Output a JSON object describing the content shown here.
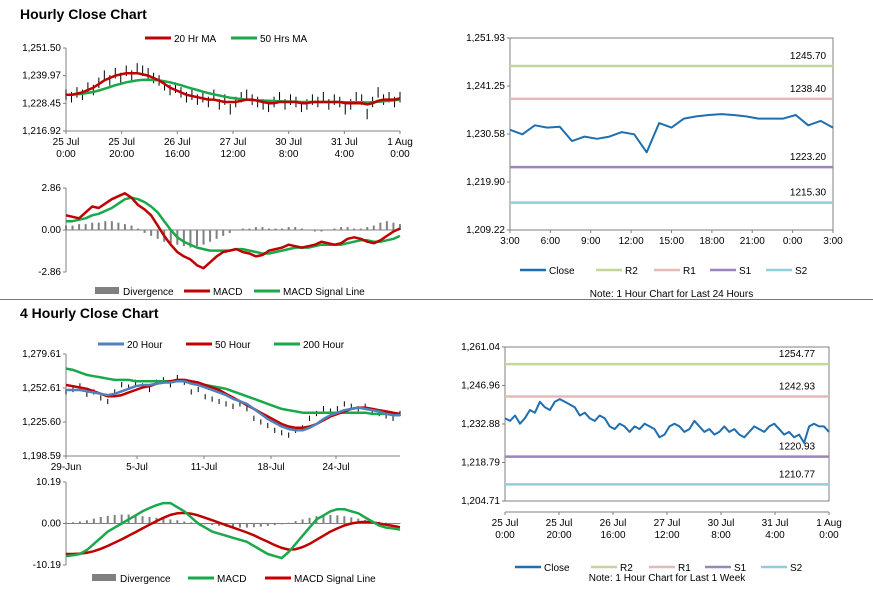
{
  "titles": {
    "hourly": "Hourly Close Chart",
    "four_hourly": "4 Hourly Close Chart"
  },
  "colors": {
    "price": "#000000",
    "ma_red": "#c00000",
    "ma_green": "#1aa84b",
    "ma_blue": "#4f81bd",
    "close": "#1f6fb0",
    "r2": "#c3d69b",
    "r1": "#e6b8b7",
    "s1": "#9a85bd",
    "s2": "#92cddc",
    "divergence": "#808080",
    "axis": "#808080"
  },
  "chart_data": [
    {
      "id": "hourly_price",
      "type": "line",
      "title": "",
      "legend": [
        "20 Hr MA",
        "50 Hrs MA"
      ],
      "yticks": [
        "1,251.50",
        "1,239.97",
        "1,228.45",
        "1,216.92"
      ],
      "ylim": [
        1216.92,
        1251.5
      ],
      "xticks": [
        [
          "25 Jul",
          "0:00"
        ],
        [
          "25 Jul",
          "20:00"
        ],
        [
          "26 Jul",
          "16:00"
        ],
        [
          "27 Jul",
          "12:00"
        ],
        [
          "30 Jul",
          "8:00"
        ],
        [
          "31 Jul",
          "4:00"
        ],
        [
          "1 Aug",
          "0:00"
        ]
      ],
      "series": [
        {
          "name": "Close",
          "values": [
            1232,
            1231,
            1233,
            1232,
            1235,
            1234,
            1237,
            1240,
            1238,
            1241,
            1239,
            1242,
            1240,
            1243,
            1242,
            1241,
            1239,
            1238,
            1236,
            1234,
            1235,
            1233,
            1231,
            1232,
            1230,
            1231,
            1229,
            1232,
            1228,
            1230,
            1226,
            1229,
            1231,
            1232,
            1230,
            1229,
            1228,
            1227,
            1229,
            1231,
            1228,
            1230,
            1229,
            1227,
            1228,
            1230,
            1229,
            1231,
            1228,
            1230,
            1229,
            1226,
            1228,
            1231,
            1230,
            1224,
            1229,
            1233,
            1230,
            1231,
            1229,
            1231
          ]
        },
        {
          "name": "20 Hr MA",
          "values": [
            1232,
            1232,
            1232.5,
            1233,
            1234,
            1235,
            1236.5,
            1238,
            1239,
            1240,
            1240.5,
            1241,
            1241,
            1241,
            1240.5,
            1240,
            1239,
            1238,
            1236.5,
            1235,
            1234,
            1233,
            1232,
            1231.5,
            1231,
            1230.5,
            1230,
            1230,
            1229.5,
            1229,
            1229,
            1229,
            1229.5,
            1230,
            1230,
            1229.5,
            1229,
            1228.5,
            1228.5,
            1229,
            1229,
            1229,
            1229,
            1228.5,
            1228.5,
            1229,
            1229,
            1229,
            1229,
            1229,
            1229,
            1228.5,
            1228.5,
            1228.5,
            1228.5,
            1228,
            1228.5,
            1229.5,
            1230,
            1230,
            1230,
            1230.5
          ]
        },
        {
          "name": "50 Hrs MA",
          "values": [
            1232,
            1232,
            1232.2,
            1232.4,
            1232.8,
            1233.2,
            1233.8,
            1234.5,
            1235.2,
            1236,
            1236.6,
            1237.2,
            1237.6,
            1238,
            1238.2,
            1238.3,
            1238.2,
            1238,
            1237.6,
            1237.2,
            1236.6,
            1236,
            1235.3,
            1234.6,
            1234,
            1233.3,
            1232.7,
            1232.2,
            1231.7,
            1231.2,
            1230.8,
            1230.5,
            1230.2,
            1230,
            1229.8,
            1229.7,
            1229.6,
            1229.5,
            1229.4,
            1229.3,
            1229.2,
            1229.2,
            1229.1,
            1229,
            1229,
            1229,
            1229,
            1229,
            1229,
            1229,
            1229,
            1228.9,
            1228.9,
            1228.9,
            1228.9,
            1228.8,
            1228.9,
            1229.1,
            1229.3,
            1229.5,
            1229.7,
            1230
          ]
        }
      ]
    },
    {
      "id": "hourly_macd",
      "type": "line",
      "legend": [
        "Divergence",
        "MACD",
        "MACD Signal Line"
      ],
      "yticks": [
        "2.86",
        "0.00",
        "-2.86"
      ],
      "ylim": [
        -2.86,
        2.86
      ],
      "series": [
        {
          "name": "Divergence",
          "values": [
            0.3,
            0.3,
            0.4,
            0.4,
            0.5,
            0.5,
            0.6,
            0.6,
            0.5,
            0.4,
            0.3,
            0.1,
            -0.2,
            -0.4,
            -0.6,
            -0.8,
            -0.9,
            -1.0,
            -1.1,
            -1.2,
            -1.1,
            -1.0,
            -0.8,
            -0.6,
            -0.4,
            -0.2,
            0.0,
            0.1,
            0.1,
            0.2,
            0.2,
            0.1,
            0.1,
            0.1,
            0.2,
            0.2,
            0.1,
            0.0,
            -0.1,
            -0.1,
            0.0,
            0.1,
            0.2,
            0.2,
            0.1,
            0.1,
            0.2,
            0.3,
            0.5,
            0.6,
            0.5,
            0.4
          ]
        },
        {
          "name": "MACD",
          "values": [
            1.0,
            0.9,
            0.8,
            1.2,
            1.6,
            1.5,
            1.8,
            2.1,
            2.3,
            2.5,
            2.2,
            1.7,
            1.4,
            1.0,
            0.3,
            -0.4,
            -1.0,
            -1.5,
            -1.8,
            -2.0,
            -2.4,
            -2.6,
            -2.2,
            -1.8,
            -1.5,
            -1.4,
            -1.3,
            -1.5,
            -1.6,
            -1.8,
            -1.7,
            -1.4,
            -1.3,
            -1.2,
            -1.0,
            -1.1,
            -1.2,
            -1.1,
            -1.0,
            -0.8,
            -0.9,
            -1.0,
            -0.9,
            -0.6,
            -0.5,
            -0.6,
            -0.8,
            -0.9,
            -0.7,
            -0.4,
            -0.1,
            0.1
          ]
        },
        {
          "name": "MACD Signal Line",
          "values": [
            0.6,
            0.6,
            0.7,
            0.8,
            1.0,
            1.1,
            1.3,
            1.5,
            1.8,
            2.1,
            2.2,
            2.1,
            1.9,
            1.6,
            1.2,
            0.6,
            0.0,
            -0.5,
            -0.8,
            -1.0,
            -1.2,
            -1.3,
            -1.4,
            -1.4,
            -1.4,
            -1.4,
            -1.3,
            -1.3,
            -1.4,
            -1.5,
            -1.6,
            -1.6,
            -1.5,
            -1.4,
            -1.3,
            -1.2,
            -1.2,
            -1.2,
            -1.1,
            -1.0,
            -1.0,
            -1.0,
            -1.0,
            -0.9,
            -0.8,
            -0.7,
            -0.7,
            -0.8,
            -0.8,
            -0.7,
            -0.6,
            -0.4
          ]
        }
      ]
    },
    {
      "id": "hourly_levels",
      "type": "line",
      "yticks": [
        "1,251.93",
        "1,241.25",
        "1,230.58",
        "1,219.90",
        "1,209.22"
      ],
      "ylim": [
        1209.22,
        1251.93
      ],
      "xticks": [
        "3:00",
        "6:00",
        "9:00",
        "12:00",
        "15:00",
        "18:00",
        "21:00",
        "0:00",
        "3:00"
      ],
      "levels": [
        {
          "name": "R2",
          "value": 1245.7,
          "label": "1245.70"
        },
        {
          "name": "R1",
          "value": 1238.4,
          "label": "1238.40"
        },
        {
          "name": "S1",
          "value": 1223.2,
          "label": "1223.20"
        },
        {
          "name": "S2",
          "value": 1215.3,
          "label": "1215.30"
        }
      ],
      "series": [
        {
          "name": "Close",
          "values": [
            1231.5,
            1230.5,
            1232.5,
            1232,
            1232.2,
            1229,
            1230,
            1229.5,
            1230,
            1231,
            1230.5,
            1226.5,
            1233,
            1232,
            1234,
            1234.5,
            1234.8,
            1235,
            1234.8,
            1234.5,
            1234,
            1234,
            1234,
            1234.8,
            1232.5,
            1233.5,
            1232
          ]
        }
      ],
      "legend": [
        "Close",
        "R2",
        "R1",
        "S1",
        "S2"
      ],
      "note": "Note: 1 Hour Chart for Last 24 Hours"
    },
    {
      "id": "four_hourly_price",
      "type": "line",
      "legend": [
        "20 Hour",
        "50 Hour",
        "200 Hour"
      ],
      "yticks": [
        "1,279.61",
        "1,252.61",
        "1,225.60",
        "1,198.59"
      ],
      "ylim": [
        1198.59,
        1279.61
      ],
      "xticks": [
        "29-Jun",
        "5-Jul",
        "11-Jul",
        "18-Jul",
        "24-Jul"
      ],
      "series": [
        {
          "name": "Close",
          "values": [
            1250,
            1252,
            1255,
            1248,
            1250,
            1245,
            1242,
            1250,
            1256,
            1254,
            1258,
            1255,
            1252,
            1258,
            1260,
            1256,
            1262,
            1258,
            1250,
            1252,
            1246,
            1244,
            1242,
            1240,
            1238,
            1240,
            1236,
            1228,
            1225,
            1222,
            1218,
            1216,
            1214,
            1218,
            1220,
            1228,
            1232,
            1236,
            1234,
            1236,
            1240,
            1238,
            1236,
            1238,
            1234,
            1232,
            1230,
            1228,
            1232
          ]
        },
        {
          "name": "20 Hour",
          "values": [
            1251,
            1251,
            1251,
            1250,
            1249,
            1248,
            1247,
            1248,
            1250,
            1252,
            1254,
            1255,
            1255,
            1256,
            1257,
            1257,
            1258,
            1258,
            1256,
            1255,
            1253,
            1251,
            1249,
            1247,
            1244,
            1242,
            1240,
            1236,
            1232,
            1228,
            1225,
            1222,
            1220,
            1219,
            1219,
            1221,
            1224,
            1228,
            1231,
            1233,
            1235,
            1236,
            1237,
            1236,
            1235,
            1234,
            1232,
            1231,
            1231
          ]
        },
        {
          "name": "50 Hour",
          "values": [
            1255,
            1254,
            1253,
            1252,
            1250,
            1248,
            1246,
            1246,
            1247,
            1249,
            1251,
            1253,
            1254,
            1256,
            1257,
            1258,
            1259,
            1259,
            1258,
            1257,
            1255,
            1253,
            1251,
            1248,
            1245,
            1242,
            1239,
            1236,
            1233,
            1230,
            1227,
            1224,
            1222,
            1221,
            1221,
            1222,
            1224,
            1227,
            1230,
            1232,
            1234,
            1236,
            1237,
            1237,
            1236,
            1235,
            1234,
            1233,
            1232
          ]
        },
        {
          "name": "200 Hour",
          "values": [
            1268,
            1267,
            1265,
            1263,
            1262,
            1261,
            1260,
            1259,
            1259,
            1259,
            1258,
            1258,
            1258,
            1258,
            1258,
            1258,
            1258,
            1258,
            1257,
            1256,
            1255,
            1254,
            1253,
            1252,
            1250,
            1248,
            1246,
            1244,
            1242,
            1240,
            1238,
            1236,
            1235,
            1234,
            1233,
            1233,
            1233,
            1233,
            1233,
            1233,
            1233,
            1233,
            1233,
            1233,
            1232,
            1232,
            1232,
            1232,
            1232
          ]
        }
      ]
    },
    {
      "id": "four_hourly_macd",
      "type": "line",
      "legend": [
        "Divergence",
        "MACD",
        "MACD Signal Line"
      ],
      "yticks": [
        "10.19",
        "0.00",
        "-10.19"
      ],
      "ylim": [
        -10.19,
        10.19
      ],
      "series": [
        {
          "name": "Divergence",
          "values": [
            0.2,
            0.3,
            0.5,
            0.8,
            1.2,
            1.6,
            1.9,
            2.1,
            2.2,
            2.2,
            2.0,
            1.8,
            1.6,
            1.4,
            1.2,
            1.0,
            0.8,
            0.5,
            0.3,
            0.0,
            -0.2,
            -0.4,
            -0.6,
            -0.8,
            -0.9,
            -1.0,
            -1.0,
            -0.9,
            -0.8,
            -0.6,
            -0.4,
            -0.2,
            0.2,
            0.6,
            1.0,
            1.4,
            1.8,
            2.0,
            2.1,
            2.0,
            1.8,
            1.5,
            1.2,
            0.9,
            0.6,
            0.4,
            0.2,
            0.1,
            0.1
          ]
        },
        {
          "name": "MACD",
          "values": [
            -8,
            -7.8,
            -7.5,
            -6.5,
            -5,
            -3.5,
            -2,
            -1,
            0,
            1,
            2,
            3,
            3.8,
            4.5,
            5,
            5,
            4,
            3,
            1.5,
            0,
            -1,
            -2,
            -2.5,
            -3,
            -3.5,
            -4,
            -4.5,
            -5.5,
            -6.5,
            -7.5,
            -8,
            -8.5,
            -7,
            -5,
            -3,
            -1,
            1,
            2,
            3,
            3.5,
            3.5,
            3,
            2.5,
            1.5,
            0.5,
            -0.5,
            -1,
            -1.2,
            -1.5
          ]
        },
        {
          "name": "MACD Signal Line",
          "values": [
            -7.5,
            -7.5,
            -7.4,
            -7.2,
            -6.8,
            -6.2,
            -5.5,
            -4.7,
            -3.9,
            -3,
            -2.1,
            -1.2,
            -0.3,
            0.6,
            1.4,
            2.1,
            2.5,
            2.6,
            2.4,
            2.0,
            1.4,
            0.8,
            0.2,
            -0.4,
            -1.0,
            -1.6,
            -2.2,
            -2.9,
            -3.7,
            -4.5,
            -5.3,
            -6.0,
            -6.4,
            -6.3,
            -5.8,
            -5.0,
            -4.0,
            -3.0,
            -2.0,
            -1.2,
            -0.5,
            0.0,
            0.3,
            0.4,
            0.3,
            0.0,
            -0.3,
            -0.6,
            -0.9
          ]
        }
      ]
    },
    {
      "id": "four_hourly_levels",
      "type": "line",
      "yticks": [
        "1,261.04",
        "1,246.96",
        "1,232.88",
        "1,218.79",
        "1,204.71"
      ],
      "ylim": [
        1204.71,
        1261.04
      ],
      "xticks": [
        [
          "25 Jul",
          "0:00"
        ],
        [
          "25 Jul",
          "20:00"
        ],
        [
          "26 Jul",
          "16:00"
        ],
        [
          "27 Jul",
          "12:00"
        ],
        [
          "30 Jul",
          "8:00"
        ],
        [
          "31 Jul",
          "4:00"
        ],
        [
          "1 Aug",
          "0:00"
        ]
      ],
      "levels": [
        {
          "name": "R2",
          "value": 1254.77,
          "label": "1254.77"
        },
        {
          "name": "R1",
          "value": 1242.93,
          "label": "1242.93"
        },
        {
          "name": "S1",
          "value": 1220.93,
          "label": "1220.93"
        },
        {
          "name": "S2",
          "value": 1210.77,
          "label": "1210.77"
        }
      ],
      "series": [
        {
          "name": "Close",
          "values": [
            1235,
            1234,
            1236,
            1233,
            1235,
            1238,
            1237,
            1241,
            1239,
            1238,
            1241,
            1242,
            1241,
            1240,
            1239,
            1236,
            1237,
            1235,
            1234,
            1236,
            1235,
            1232,
            1231,
            1233,
            1232,
            1230,
            1232,
            1231,
            1233,
            1232,
            1231,
            1228,
            1229,
            1232,
            1233,
            1232,
            1230,
            1231,
            1234,
            1232,
            1230,
            1231,
            1229,
            1230,
            1232,
            1230,
            1231,
            1229,
            1228,
            1230,
            1232,
            1231,
            1230,
            1232,
            1233,
            1231,
            1229,
            1230,
            1228,
            1229,
            1226,
            1232,
            1233,
            1232,
            1232,
            1230
          ]
        }
      ],
      "legend": [
        "Close",
        "R2",
        "R1",
        "S1",
        "S2"
      ],
      "note": "Note: 1 Hour Chart for Last 1 Week"
    }
  ]
}
